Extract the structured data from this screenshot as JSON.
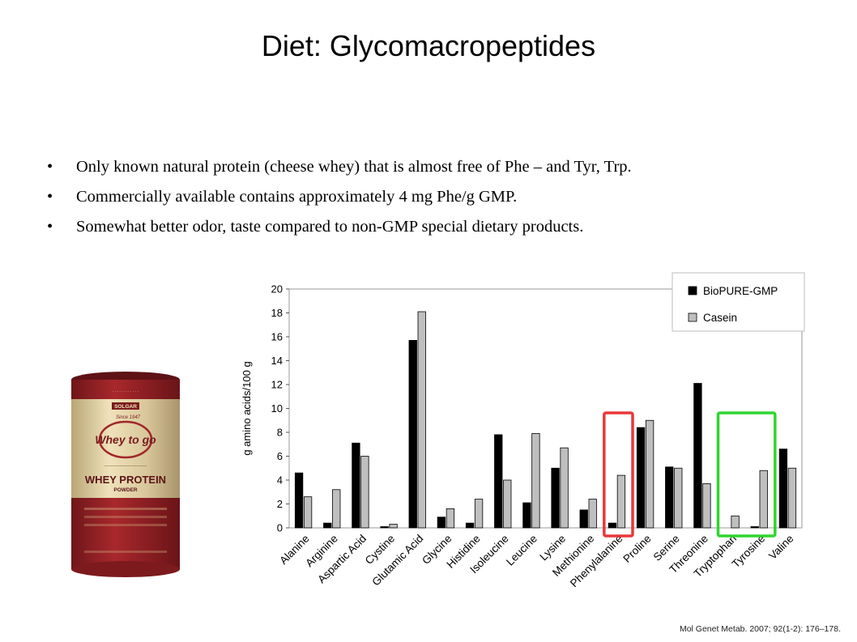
{
  "slide": {
    "title": "Diet: Glycomacropeptides",
    "bullets": [
      "Only known natural protein (cheese whey) that is almost free of Phe – and Tyr, Trp.",
      "Commercially available contains approximately 4 mg Phe/g GMP.",
      "Somewhat better odor, taste compared to non-GMP special dietary products."
    ],
    "bullet_char": "•",
    "citation": "Mol Genet Metab. 2007; 92(1-2): 176–178."
  },
  "product_image": {
    "brand": "SOLGAR",
    "since": "Since 1947",
    "logo_text": "Whey to go",
    "name": "WHEY PROTEIN",
    "form": "POWDER",
    "colors": {
      "lid": "#8b1f23",
      "body": "#d9c79a",
      "band": "#9a2326"
    }
  },
  "chart_data": {
    "type": "bar",
    "categories": [
      "Alanine",
      "Arginine",
      "Aspartic Acid",
      "Cystine",
      "Glutamic Acid",
      "Glycine",
      "Histidine",
      "Isoleucine",
      "Leucine",
      "Lysine",
      "Methionine",
      "Phenylalanine",
      "Proline",
      "Serine",
      "Threonine",
      "Tryptophan",
      "Tyrosine",
      "Valine"
    ],
    "series": [
      {
        "name": "BioPURE-GMP",
        "color": "#000000",
        "values": [
          4.6,
          0.4,
          7.1,
          0.1,
          15.7,
          0.9,
          0.4,
          7.8,
          2.1,
          5.0,
          1.5,
          0.4,
          8.4,
          5.1,
          12.1,
          0.0,
          0.1,
          6.6
        ]
      },
      {
        "name": "Casein",
        "color": "#bfbfbf",
        "values": [
          2.6,
          3.2,
          6.0,
          0.3,
          18.1,
          1.6,
          2.4,
          4.0,
          7.9,
          6.7,
          2.4,
          4.4,
          9.0,
          5.0,
          3.7,
          1.0,
          4.8,
          5.0
        ]
      }
    ],
    "ylabel": "g amino acids/100 g",
    "ylim": [
      0,
      20
    ],
    "yticks": [
      0,
      2,
      4,
      6,
      8,
      10,
      12,
      14,
      16,
      18,
      20
    ],
    "legend_position": "top-right",
    "grid": false,
    "highlights": [
      {
        "categories": [
          "Phenylalanine"
        ],
        "color": "#e8383b"
      },
      {
        "categories": [
          "Tryptophan",
          "Tyrosine"
        ],
        "color": "#2fd52f"
      }
    ]
  }
}
